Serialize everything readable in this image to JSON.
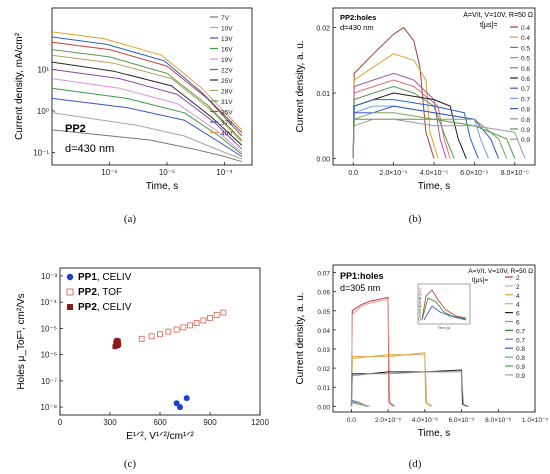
{
  "figure": {
    "captions": [
      "(a)",
      "(b)",
      "(c)",
      "(d)"
    ]
  },
  "chart_data": [
    {
      "panel": "a",
      "type": "line",
      "xlabel": "Time, s",
      "ylabel": "Current density, mA/cm²",
      "xscale": "log",
      "yscale": "log",
      "xlim": [
        1e-07,
        0.0003
      ],
      "ylim": [
        0.05,
        300
      ],
      "xticks": [
        "10⁻⁶",
        "10⁻⁵",
        "10⁻⁴"
      ],
      "yticks": [
        "10⁻¹",
        "10⁰",
        "10¹"
      ],
      "annotations": [
        "PP2",
        "d=430 nm"
      ],
      "legend_position": "top-right",
      "series": [
        {
          "name": "7V",
          "color": "#777777",
          "x": [
            1e-07,
            5e-06,
            3e-05,
            0.0001,
            0.0002
          ],
          "values": [
            0.35,
            0.2,
            0.12,
            0.08,
            0.06
          ]
        },
        {
          "name": "10V",
          "color": "#b3a0a0",
          "x": [
            1e-07,
            3e-06,
            2e-05,
            0.0001,
            0.0002
          ],
          "values": [
            0.9,
            0.45,
            0.25,
            0.1,
            0.07
          ]
        },
        {
          "name": "13V",
          "color": "#3a55c8",
          "x": [
            1e-07,
            2e-06,
            2e-05,
            8e-05,
            0.0002
          ],
          "values": [
            2.0,
            1.2,
            0.6,
            0.18,
            0.08
          ]
        },
        {
          "name": "16V",
          "color": "#3ca03c",
          "x": [
            1e-07,
            2e-06,
            2e-05,
            8e-05,
            0.0002
          ],
          "values": [
            3.5,
            2.0,
            0.9,
            0.25,
            0.09
          ]
        },
        {
          "name": "19V",
          "color": "#e090e0",
          "x": [
            1e-07,
            1.5e-06,
            1.5e-05,
            7e-05,
            0.0002
          ],
          "values": [
            6.0,
            3.5,
            1.5,
            0.35,
            0.1
          ]
        },
        {
          "name": "22V",
          "color": "#8e44ad",
          "x": [
            1e-07,
            1.5e-06,
            1.5e-05,
            7e-05,
            0.0002
          ],
          "values": [
            10.0,
            6.0,
            2.5,
            0.5,
            0.12
          ]
        },
        {
          "name": "25V",
          "color": "#2a2a2a",
          "x": [
            1e-07,
            1.2e-06,
            1.2e-05,
            6e-05,
            0.0002
          ],
          "values": [
            15.0,
            9.0,
            4.0,
            0.7,
            0.15
          ]
        },
        {
          "name": "28V",
          "color": "#b8a060",
          "x": [
            1e-07,
            1.2e-06,
            1.2e-05,
            6e-05,
            0.0002
          ],
          "values": [
            22.0,
            14.0,
            6.0,
            1.0,
            0.18
          ]
        },
        {
          "name": "31V",
          "color": "#5a9a50",
          "x": [
            1e-07,
            1e-06,
            1e-05,
            5e-05,
            0.0002
          ],
          "values": [
            30.0,
            20.0,
            8.0,
            1.4,
            0.2
          ]
        },
        {
          "name": "35V",
          "color": "#c04040",
          "x": [
            1e-07,
            1e-06,
            1e-05,
            5e-05,
            0.0002
          ],
          "values": [
            45.0,
            30.0,
            12.0,
            2.0,
            0.25
          ]
        },
        {
          "name": "37V",
          "color": "#3060c0",
          "x": [
            1e-07,
            9e-07,
            9e-06,
            4e-05,
            0.0002
          ],
          "values": [
            60.0,
            40.0,
            16.0,
            2.8,
            0.3
          ]
        },
        {
          "name": "40V",
          "color": "#e8a030",
          "x": [
            1e-07,
            8e-07,
            8e-06,
            4e-05,
            0.0002
          ],
          "values": [
            80.0,
            55.0,
            22.0,
            3.5,
            0.35
          ]
        }
      ]
    },
    {
      "panel": "b",
      "type": "line",
      "xlabel": "Time, s",
      "ylabel": "Current density, a. u.",
      "xlim": [
        -1e-05,
        9e-05
      ],
      "ylim": [
        -0.001,
        0.023
      ],
      "xticks": [
        "0.0",
        "2.0×10⁻⁵",
        "4.0×10⁻⁵",
        "6.0×10⁻⁵",
        "8.0×10⁻⁵"
      ],
      "yticks": [
        "0.00",
        "0.01",
        "0.02"
      ],
      "annotations": [
        "PP2:holes",
        "d=430 nm",
        "A=V/t, V=10V, R=50 Ω",
        "t[μs]="
      ],
      "legend_position": "top-right",
      "series": [
        {
          "name": "0.4",
          "color": "#a04040",
          "x": [
            0,
            5e-07,
            1e-05,
            2e-05,
            2.5e-05,
            3e-05,
            3.3e-05,
            3.6e-05,
            4e-05
          ],
          "values": [
            0.0,
            0.013,
            0.016,
            0.019,
            0.02,
            0.018,
            0.014,
            0.004,
            0.0
          ]
        },
        {
          "name": "0.4",
          "color": "#e0a030",
          "x": [
            0,
            5e-07,
            1e-05,
            2e-05,
            3e-05,
            3.6e-05,
            3.8e-05,
            4.2e-05
          ],
          "values": [
            0.0,
            0.012,
            0.014,
            0.016,
            0.015,
            0.012,
            0.004,
            0.0
          ]
        },
        {
          "name": "0.5",
          "color": "#a05aa0",
          "x": [
            0,
            5e-07,
            1e-05,
            2e-05,
            3e-05,
            4e-05,
            4.3e-05,
            4.6e-05
          ],
          "values": [
            0.0,
            0.011,
            0.012,
            0.013,
            0.012,
            0.009,
            0.003,
            0.0
          ]
        },
        {
          "name": "0.5",
          "color": "#e07070",
          "x": [
            0,
            5e-07,
            1e-05,
            2e-05,
            3e-05,
            4.2e-05,
            4.5e-05,
            4.8e-05
          ],
          "values": [
            0.0,
            0.01,
            0.011,
            0.012,
            0.011,
            0.008,
            0.003,
            0.0
          ]
        },
        {
          "name": "0.6",
          "color": "#5a9a50",
          "x": [
            0,
            5e-07,
            1e-05,
            2e-05,
            3e-05,
            4e-05,
            4.6e-05,
            5e-05
          ],
          "values": [
            0.0,
            0.009,
            0.01,
            0.011,
            0.01,
            0.008,
            0.003,
            0.0
          ]
        },
        {
          "name": "0.6",
          "color": "#202020",
          "x": [
            0,
            5e-07,
            1e-05,
            2e-05,
            4e-05,
            4.8e-05,
            5.2e-05,
            5.6e-05
          ],
          "values": [
            0.0,
            0.008,
            0.009,
            0.01,
            0.009,
            0.008,
            0.003,
            0.0
          ]
        },
        {
          "name": "0.7",
          "color": "#3060c0",
          "x": [
            0,
            5e-07,
            1e-05,
            2e-05,
            4e-05,
            5.5e-05,
            5.8e-05,
            6.2e-05
          ],
          "values": [
            0.0,
            0.008,
            0.009,
            0.009,
            0.008,
            0.007,
            0.003,
            0.0
          ]
        },
        {
          "name": "0.7",
          "color": "#70a0e0",
          "x": [
            0,
            5e-07,
            1e-05,
            2e-05,
            4e-05,
            6e-05,
            6.3e-05,
            6.7e-05
          ],
          "values": [
            0.0,
            0.007,
            0.008,
            0.008,
            0.007,
            0.006,
            0.003,
            0.0
          ]
        },
        {
          "name": "0.8",
          "color": "#3a55c8",
          "x": [
            0,
            5e-07,
            1e-05,
            2e-05,
            4e-05,
            6e-05,
            6.8e-05,
            7.2e-05
          ],
          "values": [
            0.0,
            0.007,
            0.007,
            0.008,
            0.007,
            0.006,
            0.003,
            0.0
          ]
        },
        {
          "name": "0.8",
          "color": "#80a060",
          "x": [
            0,
            5e-07,
            1e-05,
            2e-05,
            4e-05,
            6e-05,
            7.2e-05,
            7.6e-05
          ],
          "values": [
            0.0,
            0.006,
            0.007,
            0.007,
            0.006,
            0.006,
            0.003,
            0.0
          ]
        },
        {
          "name": "0.9",
          "color": "#4aa04a",
          "x": [
            0,
            5e-07,
            1e-05,
            2e-05,
            4e-05,
            6e-05,
            7.6e-05,
            8e-05
          ],
          "values": [
            0.0,
            0.006,
            0.006,
            0.006,
            0.006,
            0.005,
            0.003,
            0.0
          ]
        },
        {
          "name": "0.9",
          "color": "#9a9a9a",
          "x": [
            0,
            5e-07,
            1e-05,
            2e-05,
            4e-05,
            6e-05,
            8e-05,
            8.5e-05
          ],
          "values": [
            0.0,
            0.005,
            0.006,
            0.006,
            0.005,
            0.005,
            0.004,
            0.0
          ]
        }
      ]
    },
    {
      "panel": "c",
      "type": "scatter",
      "xlabel": "E¹ᐟ², V¹ᐟ²/cm¹ᐟ²",
      "ylabel": "Holes μ_ToF¹, cm²/Vs",
      "yscale": "log",
      "xlim": [
        0,
        1200
      ],
      "ylim": [
        5e-09,
        0.002
      ],
      "xticks": [
        "0",
        "300",
        "600",
        "900",
        "1200"
      ],
      "yticks": [
        "10⁻⁸",
        "10⁻⁷",
        "10⁻⁶",
        "10⁻⁵",
        "10⁻⁴",
        "10⁻³"
      ],
      "legend_position": "top-left",
      "series": [
        {
          "name": "PP1, CELIV",
          "color": "#1c3fd1",
          "marker": "circle-filled",
          "x": [
            700,
            720,
            760
          ],
          "values": [
            1.4e-08,
            1e-08,
            2.2e-08
          ]
        },
        {
          "name": "PP2, TOF",
          "color": "#e07060",
          "marker": "square-open",
          "x": [
            490,
            550,
            600,
            650,
            700,
            740,
            780,
            820,
            860,
            900,
            940,
            980
          ],
          "values": [
            4e-06,
            5e-06,
            6e-06,
            7.5e-06,
            9e-06,
            1.1e-05,
            1.3e-05,
            1.6e-05,
            2e-05,
            2.5e-05,
            3.2e-05,
            4e-05
          ]
        },
        {
          "name": "PP2, CELIV",
          "color": "#8b1a1a",
          "marker": "square-filled",
          "x": [
            330,
            335,
            338,
            342,
            345,
            348,
            350,
            352
          ],
          "values": [
            2e-06,
            3e-06,
            2.5e-06,
            3.5e-06,
            2.2e-06,
            2.8e-06,
            3.2e-06,
            2.4e-06
          ]
        }
      ]
    },
    {
      "panel": "d",
      "type": "line",
      "xlabel": "Time, s",
      "ylabel": "Current density, a. u.",
      "xlim": [
        -1e-06,
        1e-05
      ],
      "ylim": [
        -0.003,
        0.074
      ],
      "xticks": [
        "0.0",
        "2.0×10⁻⁶",
        "4.0×10⁻⁶",
        "6.0×10⁻⁶",
        "8.0×10⁻⁶",
        "1.0×10⁻⁵"
      ],
      "yticks": [
        "0.00",
        "0.01",
        "0.02",
        "0.03",
        "0.04",
        "0.05",
        "0.06",
        "0.07"
      ],
      "annotations": [
        "PP1:holes",
        "d=305 nm",
        "A=V/t, V=10V, R=50 Ω",
        "t[μs]="
      ],
      "legend_position": "top-right",
      "inset": {
        "xlabel": "Time (s)",
        "ylabel": "Current density (a.u.)"
      },
      "series": [
        {
          "name": "2",
          "color": "#c03030",
          "x": [
            0,
            5e-08,
            5e-07,
            1e-06,
            1.5e-06,
            2e-06,
            2.05e-06,
            2.3e-06
          ],
          "values": [
            0.0,
            0.05,
            0.053,
            0.055,
            0.056,
            0.057,
            0.002,
            0.0
          ]
        },
        {
          "name": "2",
          "color": "#e0a0a0",
          "x": [
            0,
            5e-08,
            5e-07,
            1e-06,
            1.5e-06,
            2e-06,
            2.1e-06,
            2.4e-06
          ],
          "values": [
            0.0,
            0.048,
            0.052,
            0.054,
            0.055,
            0.056,
            0.002,
            0.0
          ]
        },
        {
          "name": "4",
          "color": "#e0a030",
          "x": [
            0,
            5e-08,
            1e-06,
            2e-06,
            3e-06,
            4e-06,
            4.05e-06,
            4.3e-06
          ],
          "values": [
            0.0,
            0.026,
            0.026,
            0.027,
            0.027,
            0.028,
            0.002,
            0.0
          ]
        },
        {
          "name": "4",
          "color": "#d0b060",
          "x": [
            0,
            5e-08,
            1e-06,
            2e-06,
            3e-06,
            4e-06,
            4.1e-06,
            4.4e-06
          ],
          "values": [
            0.0,
            0.025,
            0.026,
            0.026,
            0.027,
            0.027,
            0.002,
            0.0
          ]
        },
        {
          "name": "6",
          "color": "#202020",
          "x": [
            0,
            5e-08,
            1e-06,
            2e-06,
            4e-06,
            6e-06,
            6.05e-06,
            6.3e-06
          ],
          "values": [
            0.0,
            0.017,
            0.017,
            0.018,
            0.018,
            0.019,
            0.001,
            0.0
          ]
        },
        {
          "name": "6",
          "color": "#909090",
          "x": [
            0,
            5e-08,
            1e-06,
            2e-06,
            4e-06,
            6e-06,
            6.1e-06,
            6.4e-06
          ],
          "values": [
            0.0,
            0.016,
            0.017,
            0.017,
            0.018,
            0.018,
            0.001,
            0.0
          ]
        },
        {
          "name": "0.7",
          "color": "#3a7a3a",
          "x": [
            0,
            5e-08,
            4e-07,
            8e-07
          ],
          "values": [
            0.0,
            0.003,
            0.002,
            0.0
          ]
        },
        {
          "name": "0.7",
          "color": "#6080c0",
          "x": [
            0,
            5e-08,
            4e-07,
            8e-07
          ],
          "values": [
            0.0,
            0.003,
            0.002,
            0.0
          ]
        },
        {
          "name": "0.8",
          "color": "#3a55c8",
          "x": [
            0,
            5e-08,
            4e-07,
            9e-07
          ],
          "values": [
            0.0,
            0.002,
            0.002,
            0.0
          ]
        },
        {
          "name": "0.8",
          "color": "#70a070",
          "x": [
            0,
            5e-08,
            4e-07,
            9e-07
          ],
          "values": [
            0.0,
            0.002,
            0.002,
            0.0
          ]
        },
        {
          "name": "0.9",
          "color": "#4aa04a",
          "x": [
            0,
            5e-08,
            4e-07,
            1e-06
          ],
          "values": [
            0.0,
            0.002,
            0.001,
            0.0
          ]
        },
        {
          "name": "0.9",
          "color": "#a0a0a0",
          "x": [
            0,
            5e-08,
            4e-07,
            1e-06
          ],
          "values": [
            0.0,
            0.002,
            0.001,
            0.0
          ]
        }
      ]
    }
  ]
}
